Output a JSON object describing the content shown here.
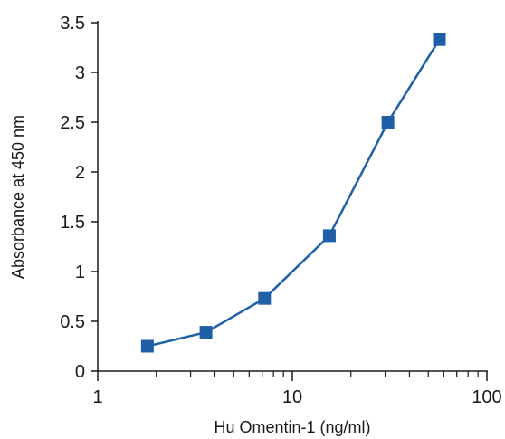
{
  "chart_data": {
    "type": "line",
    "xscale": "log",
    "xlim": [
      1,
      100
    ],
    "ylim": [
      0,
      3.5
    ],
    "xlabel": "Hu Omentin-1 (ng/ml)",
    "ylabel": "Absorbance at 450 nm",
    "x_ticks": [
      1,
      10,
      100
    ],
    "y_ticks": [
      0,
      0.5,
      1,
      1.5,
      2,
      2.5,
      3,
      3.5
    ],
    "x_tick_labels": [
      "1",
      "10",
      "100"
    ],
    "y_tick_labels": [
      "0",
      "0.5",
      "1",
      "1.5",
      "2",
      "2.5",
      "3",
      "3.5"
    ],
    "grid": false,
    "series": [
      {
        "color": "#1f5fa8",
        "marker": "square",
        "x": [
          1.8,
          3.6,
          7.2,
          15.5,
          31,
          57
        ],
        "y": [
          0.25,
          0.39,
          0.73,
          1.36,
          2.5,
          3.33
        ]
      }
    ]
  }
}
